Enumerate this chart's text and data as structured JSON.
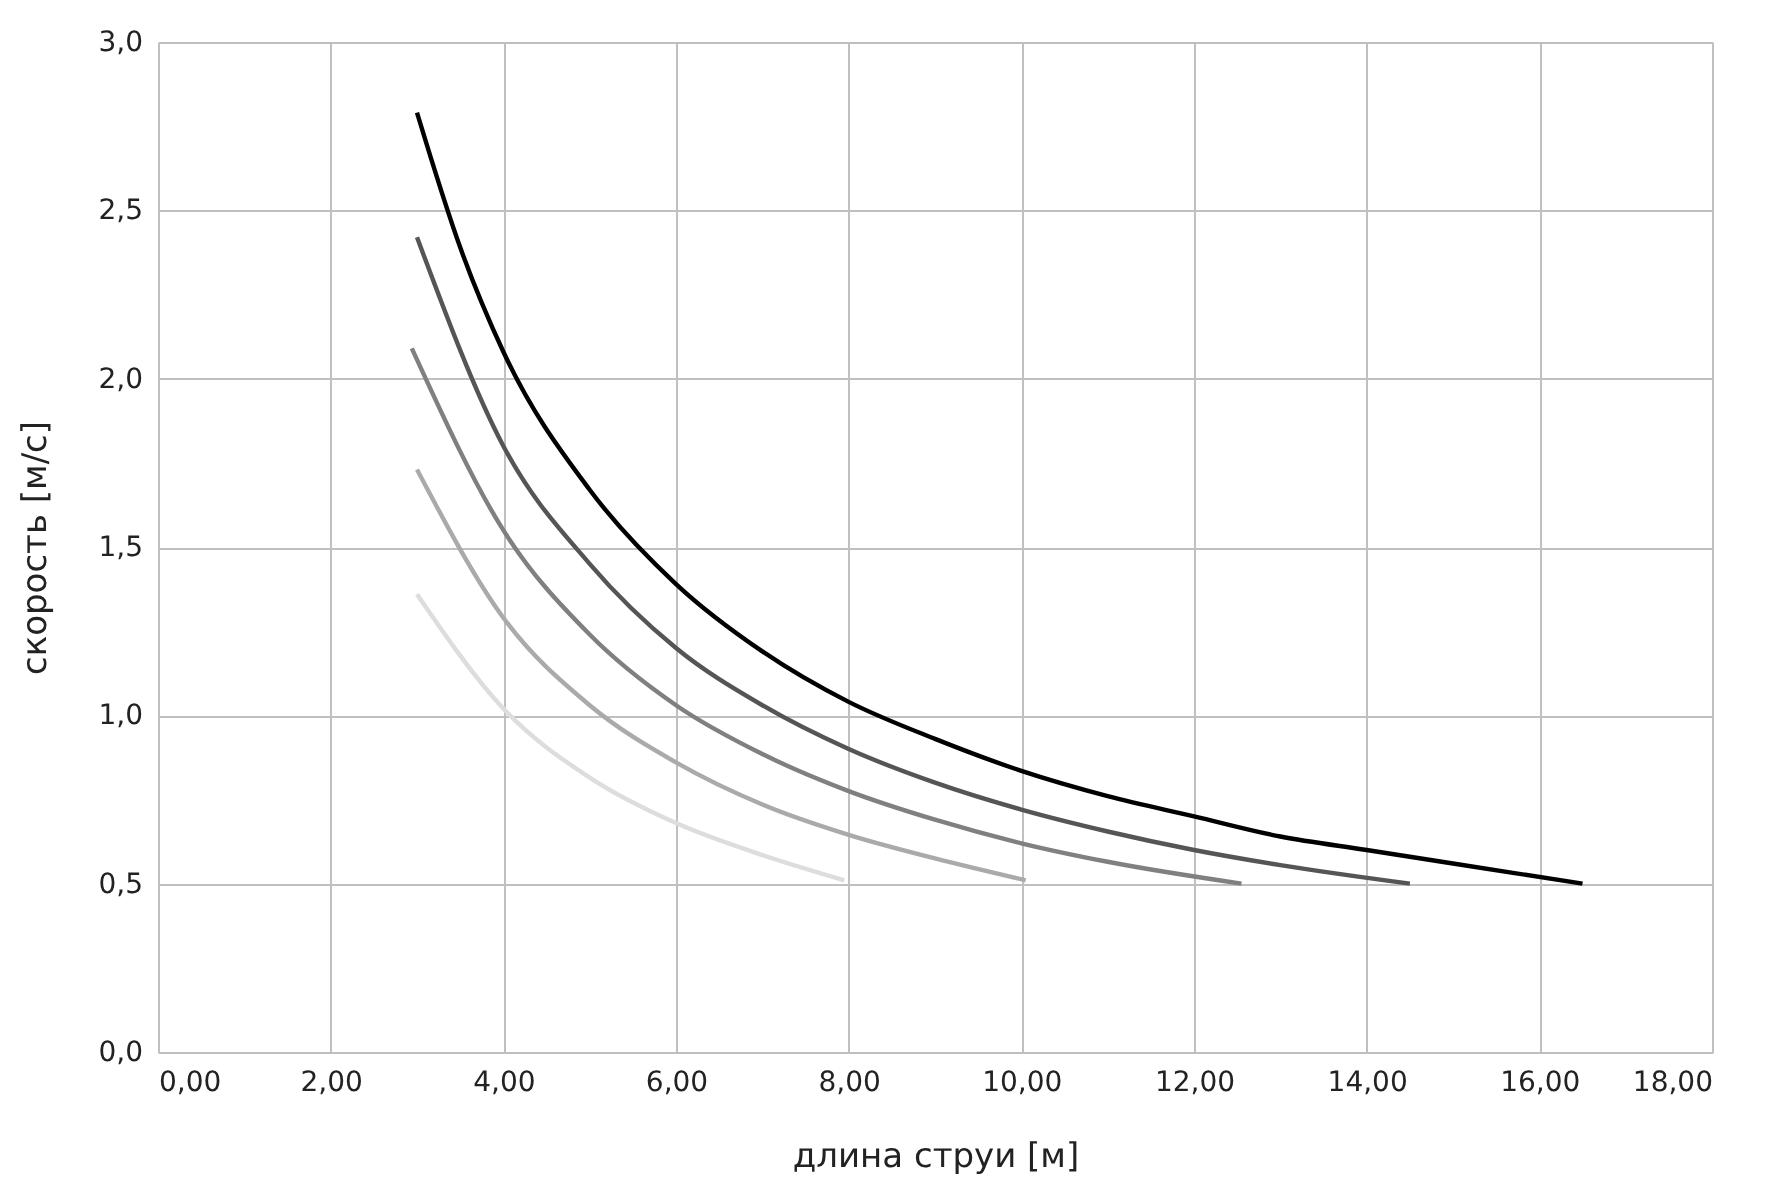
{
  "chart_data": {
    "type": "line",
    "xlabel": "длина струи [м]",
    "ylabel": "скорость [м/с]",
    "xlim": [
      0,
      18
    ],
    "ylim": [
      0,
      3
    ],
    "xticks": [
      {
        "value": 0,
        "label": "0,00"
      },
      {
        "value": 2,
        "label": "2,00"
      },
      {
        "value": 4,
        "label": "4,00"
      },
      {
        "value": 6,
        "label": "6,00"
      },
      {
        "value": 8,
        "label": "8,00"
      },
      {
        "value": 10,
        "label": "10,00"
      },
      {
        "value": 12,
        "label": "12,00"
      },
      {
        "value": 14,
        "label": "14,00"
      },
      {
        "value": 16,
        "label": "16,00"
      },
      {
        "value": 18,
        "label": "18,00"
      }
    ],
    "yticks": [
      {
        "value": 0,
        "label": "0,0"
      },
      {
        "value": 0.5,
        "label": "0,5"
      },
      {
        "value": 1,
        "label": "1,0"
      },
      {
        "value": 1.5,
        "label": "1,5"
      },
      {
        "value": 2,
        "label": "2,0"
      },
      {
        "value": 2.5,
        "label": "2,5"
      },
      {
        "value": 3,
        "label": "3,0"
      }
    ],
    "grid": true,
    "marker": "none",
    "line_style": "solid",
    "series": [
      {
        "color": "#000000",
        "x": [
          3,
          3.5,
          4,
          5,
          6,
          7,
          8,
          9,
          10,
          11,
          12,
          13,
          14,
          15,
          16.5
        ],
        "values": [
          2.79,
          2.39,
          2.08,
          1.67,
          1.39,
          1.19,
          1.04,
          0.93,
          0.835,
          0.76,
          0.7,
          0.64,
          0.6,
          0.56,
          0.5
        ]
      },
      {
        "color": "#555555",
        "x": [
          3,
          4,
          5,
          6,
          7,
          8,
          9,
          10,
          11,
          12,
          13,
          14.5
        ],
        "values": [
          2.42,
          1.8,
          1.45,
          1.2,
          1.03,
          0.9,
          0.8,
          0.72,
          0.655,
          0.6,
          0.555,
          0.5
        ]
      },
      {
        "color": "#808080",
        "x": [
          2.94,
          4,
          5,
          6,
          7,
          8,
          9,
          10,
          11,
          12.55
        ],
        "values": [
          2.09,
          1.55,
          1.24,
          1.03,
          0.885,
          0.775,
          0.69,
          0.62,
          0.565,
          0.5
        ]
      },
      {
        "color": "#aaaaaa",
        "x": [
          3,
          4,
          5,
          6,
          7,
          8,
          9,
          10.05
        ],
        "values": [
          1.73,
          1.29,
          1.03,
          0.86,
          0.735,
          0.645,
          0.575,
          0.51
        ]
      },
      {
        "color": "#dddddd",
        "x": [
          3,
          4,
          5,
          6,
          7,
          7.95
        ],
        "values": [
          1.36,
          1.02,
          0.815,
          0.68,
          0.585,
          0.51
        ]
      }
    ]
  }
}
